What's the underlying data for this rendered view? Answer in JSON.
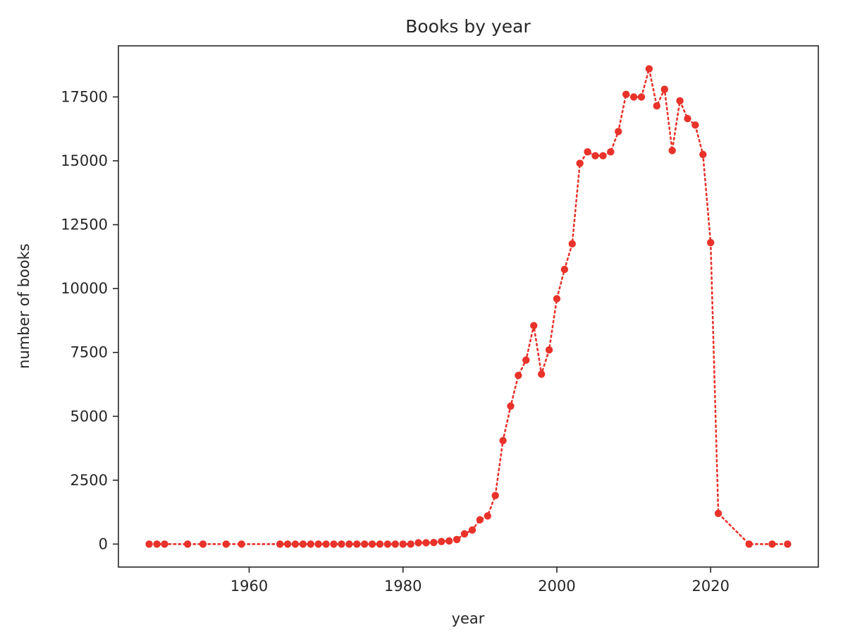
{
  "chart_data": {
    "type": "line",
    "title": "Books by year",
    "xlabel": "year",
    "ylabel": "number of books",
    "xlim": [
      1943,
      2034
    ],
    "ylim": [
      -900,
      19500
    ],
    "xticks": [
      1960,
      1980,
      2000,
      2020
    ],
    "yticks": [
      0,
      2500,
      5000,
      7500,
      10000,
      12500,
      15000,
      17500
    ],
    "grid": false,
    "line_style": "dotted",
    "marker": "circle",
    "color": "#e8322a",
    "series": [
      {
        "x": [
          1947,
          1948,
          1949,
          1952,
          1954,
          1957,
          1959,
          1964,
          1965,
          1966,
          1967,
          1968,
          1969,
          1970,
          1971,
          1972,
          1973,
          1974,
          1975,
          1976,
          1977,
          1978,
          1979,
          1980,
          1981,
          1982,
          1983,
          1984,
          1985,
          1986,
          1987,
          1988,
          1989,
          1990,
          1991,
          1992,
          1993,
          1994,
          1995,
          1996,
          1997,
          1998,
          1999,
          2000,
          2001,
          2002,
          2003,
          2004,
          2005,
          2006,
          2007,
          2008,
          2009,
          2010,
          2011,
          2012,
          2013,
          2014,
          2015,
          2016,
          2017,
          2018,
          2019,
          2020,
          2021,
          2025,
          2028,
          2030
        ],
        "y": [
          0,
          0,
          0,
          0,
          0,
          0,
          0,
          0,
          0,
          0,
          0,
          0,
          0,
          0,
          0,
          0,
          0,
          0,
          0,
          0,
          0,
          0,
          0,
          0,
          0,
          50,
          50,
          60,
          100,
          120,
          180,
          400,
          550,
          950,
          1100,
          1900,
          4050,
          5400,
          6600,
          7200,
          8550,
          6650,
          7600,
          9600,
          10750,
          11750,
          14900,
          15350,
          15200,
          15200,
          15350,
          16150,
          17600,
          17500,
          17500,
          18600,
          17150,
          17800,
          15400,
          17350,
          16650,
          16400,
          15250,
          11800,
          1200,
          0,
          0,
          0
        ]
      }
    ]
  }
}
